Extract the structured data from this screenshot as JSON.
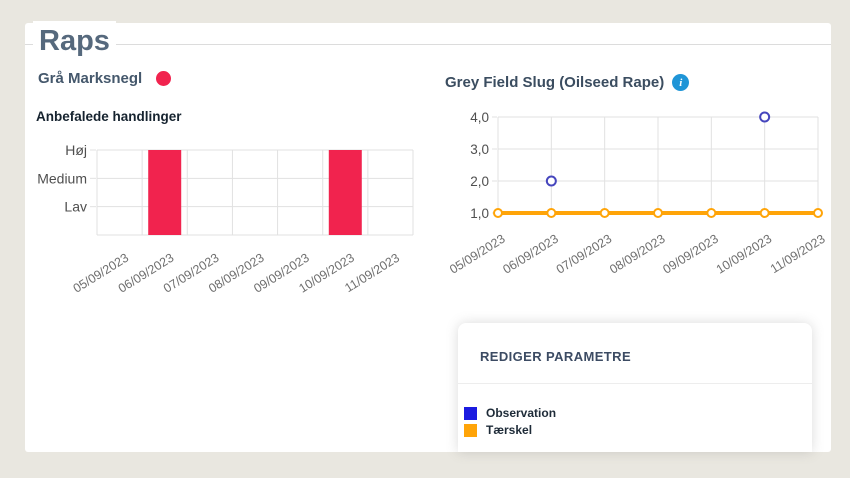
{
  "page": {
    "title": "Raps"
  },
  "crop_section": {
    "label": "Grå Marksnegl",
    "status_dot_color": "#f1234e"
  },
  "actions_section": {
    "title": "Anbefalede handlinger"
  },
  "slug_section": {
    "title": "Grey Field Slug (Oilseed Rape)",
    "info_icon_text": "i",
    "info_icon_color": "#1f95d7"
  },
  "parameters_panel": {
    "title": "REDIGER PARAMETRE",
    "legend": [
      {
        "key": "observation",
        "label": "Observation",
        "color": "#1b1be0"
      },
      {
        "key": "threshold",
        "label": "Tærskel",
        "color": "#ffa408"
      }
    ]
  },
  "colors": {
    "background": "#e9e7e0",
    "card": "#ffffff",
    "title_text": "#56697d",
    "grid": "#e1e1e1",
    "axis_text": "#6e6e6e"
  },
  "chart_data": [
    {
      "id": "actions-chart",
      "type": "bar",
      "title": "Anbefalede handlinger",
      "categories": [
        "05/09/2023",
        "06/09/2023",
        "07/09/2023",
        "08/09/2023",
        "09/09/2023",
        "10/09/2023",
        "11/09/2023"
      ],
      "y_tick_labels": [
        "Høj",
        "Medium",
        "Lav"
      ],
      "y_levels": 3,
      "level_map": {
        "Lav": 1,
        "Medium": 2,
        "Høj": 3
      },
      "values": [
        0,
        3,
        0,
        0,
        0,
        3,
        0
      ],
      "value_labels": [
        null,
        "Høj",
        null,
        null,
        null,
        "Høj",
        null
      ],
      "bar_color": "#f1234e",
      "grid": true,
      "legend_position": "none",
      "x_label_angle": -32
    },
    {
      "id": "slug-chart",
      "type": "line",
      "title": "Grey Field Slug (Oilseed Rape)",
      "categories": [
        "05/09/2023",
        "06/09/2023",
        "07/09/2023",
        "08/09/2023",
        "09/09/2023",
        "10/09/2023",
        "11/09/2023"
      ],
      "y_ticks": [
        1,
        2,
        3,
        4
      ],
      "y_tick_labels": [
        "1,0",
        "2,0",
        "3,0",
        "4,0"
      ],
      "ylim": [
        1.0,
        4.0
      ],
      "grid": true,
      "legend_position": "separate-panel-bottom-right",
      "x_label_angle": -32,
      "series": [
        {
          "name": "Observation",
          "type": "scatter",
          "marker": "open-circle",
          "color": "#4646bd",
          "values": [
            null,
            2,
            null,
            null,
            null,
            4,
            null
          ]
        },
        {
          "name": "Tærskel",
          "type": "line",
          "marker": "open-circle",
          "color": "#ffa408",
          "values": [
            1,
            1,
            1,
            1,
            1,
            1,
            1
          ]
        }
      ]
    }
  ]
}
